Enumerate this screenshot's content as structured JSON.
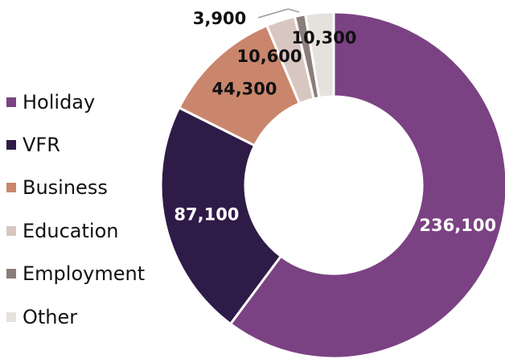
{
  "chart_data": {
    "type": "donut",
    "categories": [
      "Holiday",
      "VFR",
      "Business",
      "Education",
      "Employment",
      "Other"
    ],
    "values": [
      236100,
      87100,
      44300,
      10600,
      3900,
      10300
    ],
    "value_labels": [
      "236,100",
      "87,100",
      "44,300",
      "10,600",
      "3,900",
      "10,300"
    ],
    "colors": [
      "#7B4283",
      "#2F1B47",
      "#C9866C",
      "#D8C6C1",
      "#8B7D79",
      "#E5E1DD"
    ],
    "label_colors": [
      "#ffffff",
      "#ffffff",
      "#111111",
      "#111111",
      "#111111",
      "#111111"
    ],
    "legend_position": "left",
    "start_angle_deg": 0,
    "direction": "clockwise"
  }
}
